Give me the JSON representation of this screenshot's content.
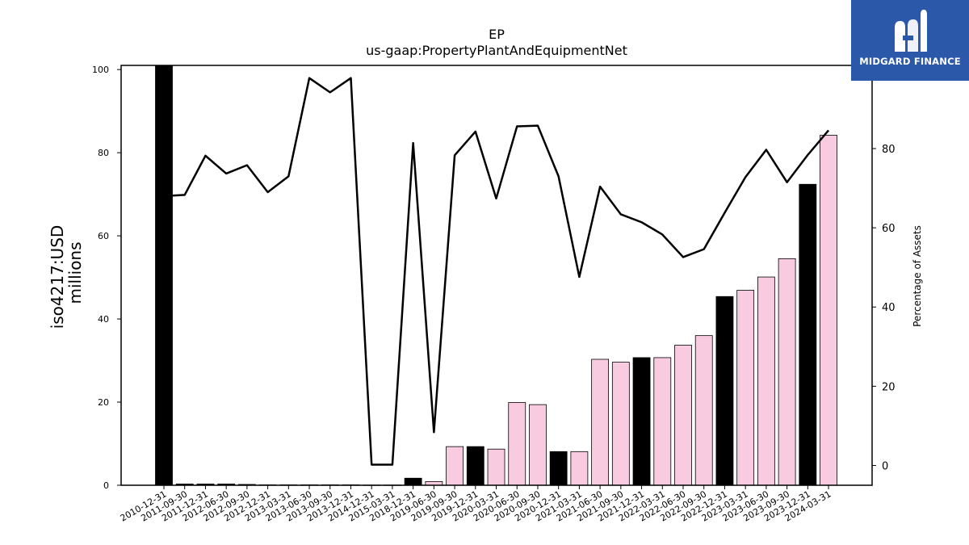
{
  "chart_data": {
    "type": "bar",
    "title": "EP",
    "subtitle": "us-gaap:PropertyPlantAndEquipmentNet",
    "ylabel_line1": "iso4217:USD",
    "ylabel_line2": "millions",
    "ylabel_right": "Percentage of Assets",
    "ylim": [
      0,
      101
    ],
    "ylim_right": [
      -5,
      101
    ],
    "yticks": [
      0,
      20,
      40,
      60,
      80,
      100
    ],
    "yticks_right": [
      0,
      20,
      40,
      60,
      80
    ],
    "categories": [
      "2010-12-31",
      "2011-09-30",
      "2011-12-31",
      "2012-06-30",
      "2012-09-30",
      "2012-12-31",
      "2013-03-31",
      "2013-06-30",
      "2013-09-30",
      "2013-12-31",
      "2014-12-31",
      "2015-03-31",
      "2018-12-31",
      "2019-06-30",
      "2019-09-30",
      "2019-12-31",
      "2020-03-31",
      "2020-06-30",
      "2020-09-30",
      "2020-12-31",
      "2021-03-31",
      "2021-06-30",
      "2021-09-30",
      "2021-12-31",
      "2022-03-31",
      "2022-06-30",
      "2022-09-30",
      "2022-12-31",
      "2023-03-31",
      "2023-06-30",
      "2023-09-30",
      "2023-12-31",
      "2024-03-31"
    ],
    "series": [
      {
        "type": "bar",
        "values": [
          101,
          0.3,
          0.3,
          0.3,
          0.2,
          0.1,
          0.1,
          0.1,
          0.1,
          0.1,
          0.05,
          0.05,
          1.7,
          0.9,
          9.3,
          9.3,
          8.7,
          19.9,
          19.4,
          8.1,
          8.1,
          30.3,
          29.6,
          30.7,
          30.7,
          33.7,
          36.0,
          45.4,
          46.9,
          50.1,
          54.5,
          72.4,
          84.2
        ],
        "colors": [
          "#000000",
          "#000000",
          "#000000",
          "#000000",
          "#000000",
          "#000000",
          "#000000",
          "#000000",
          "#000000",
          "#000000",
          "#000000",
          "#000000",
          "#000000",
          "#f9cbe1",
          "#f9cbe1",
          "#000000",
          "#f9cbe1",
          "#f9cbe1",
          "#f9cbe1",
          "#000000",
          "#f9cbe1",
          "#f9cbe1",
          "#f9cbe1",
          "#000000",
          "#f9cbe1",
          "#f9cbe1",
          "#f9cbe1",
          "#000000",
          "#f9cbe1",
          "#f9cbe1",
          "#f9cbe1",
          "#000000",
          "#f9cbe1"
        ]
      },
      {
        "type": "line",
        "axis": "right",
        "values": [
          68.0,
          68.3,
          78.2,
          73.7,
          75.8,
          69.0,
          73.0,
          97.8,
          94.2,
          97.8,
          0.2,
          0.2,
          81.4,
          8.4,
          78.3,
          84.3,
          67.4,
          85.6,
          85.8,
          73.0,
          47.6,
          70.4,
          63.4,
          61.4,
          58.3,
          52.6,
          54.6,
          63.8,
          72.8,
          79.7,
          71.5,
          78.4,
          84.6
        ]
      }
    ],
    "grid": false
  },
  "logo": {
    "text": "MIDGARD FINANCE",
    "mark": "midgard-m-logo",
    "background": "#2c58aa"
  }
}
